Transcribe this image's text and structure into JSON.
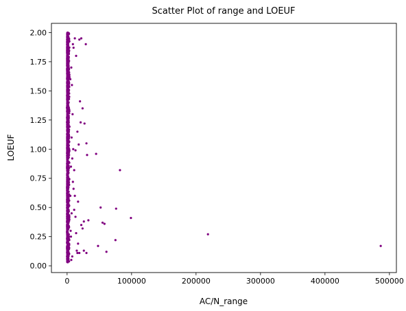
{
  "chart_data": {
    "type": "scatter",
    "title": "Scatter Plot of range and LOEUF",
    "xlabel": "AC/N_range",
    "ylabel": "LOEUF",
    "xlim": [
      -24300,
      510800
    ],
    "ylim": [
      -0.058,
      2.079
    ],
    "xticks": [
      0,
      100000,
      200000,
      300000,
      400000,
      500000
    ],
    "xtick_labels": [
      "0",
      "100000",
      "200000",
      "300000",
      "400000",
      "500000"
    ],
    "yticks": [
      0.0,
      0.25,
      0.5,
      0.75,
      1.0,
      1.25,
      1.5,
      1.75,
      2.0
    ],
    "ytick_labels": [
      "0.00",
      "0.25",
      "0.50",
      "0.75",
      "1.00",
      "1.25",
      "1.50",
      "1.75",
      "2.00"
    ],
    "grid": false,
    "legend": "none",
    "marker_color": "#800080",
    "series": [
      {
        "dense_band": {
          "x_range": [
            0,
            4000
          ],
          "y_range": [
            0.03,
            2.0
          ],
          "count": 1400
        },
        "points": [
          [
            486500,
            0.17
          ],
          [
            218500,
            0.27
          ],
          [
            82000,
            0.82
          ],
          [
            99000,
            0.41
          ],
          [
            76000,
            0.49
          ],
          [
            52000,
            0.5
          ],
          [
            55000,
            0.37
          ],
          [
            58000,
            0.36
          ],
          [
            75000,
            0.22
          ],
          [
            61000,
            0.12
          ],
          [
            48000,
            0.17
          ],
          [
            45000,
            0.96
          ],
          [
            30000,
            1.05
          ],
          [
            31000,
            0.95
          ],
          [
            24000,
            1.35
          ],
          [
            20000,
            1.41
          ],
          [
            19000,
            1.94
          ],
          [
            22000,
            1.95
          ],
          [
            29000,
            1.9
          ],
          [
            27000,
            1.22
          ],
          [
            21000,
            1.23
          ],
          [
            18000,
            1.04
          ],
          [
            33000,
            0.39
          ],
          [
            26000,
            0.38
          ],
          [
            24000,
            0.32
          ],
          [
            22000,
            0.35
          ],
          [
            19000,
            0.11
          ],
          [
            26000,
            0.13
          ],
          [
            30000,
            0.11
          ],
          [
            16000,
            0.11
          ],
          [
            15000,
            0.13
          ],
          [
            14000,
            0.28
          ],
          [
            13000,
            0.42
          ],
          [
            17000,
            0.19
          ],
          [
            11000,
            0.48
          ],
          [
            12000,
            0.6
          ],
          [
            9000,
            0.72
          ],
          [
            10000,
            0.66
          ],
          [
            11000,
            0.82
          ],
          [
            8000,
            0.92
          ],
          [
            9500,
            1.0
          ],
          [
            7000,
            1.1
          ],
          [
            8500,
            1.3
          ],
          [
            7500,
            1.55
          ],
          [
            6500,
            1.7
          ],
          [
            9000,
            1.9
          ],
          [
            12000,
            1.95
          ],
          [
            10000,
            1.87
          ],
          [
            7000,
            0.45
          ],
          [
            6000,
            0.25
          ],
          [
            8000,
            0.08
          ],
          [
            6500,
            0.05
          ],
          [
            5500,
            0.3
          ],
          [
            5000,
            0.6
          ],
          [
            6000,
            0.85
          ],
          [
            5000,
            1.6
          ],
          [
            14000,
            1.8
          ],
          [
            17000,
            0.55
          ],
          [
            13000,
            0.99
          ],
          [
            16000,
            1.15
          ]
        ]
      }
    ]
  }
}
